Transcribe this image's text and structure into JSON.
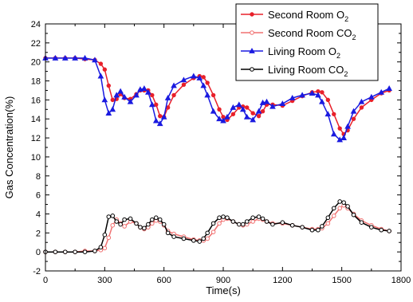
{
  "chart_data": {
    "type": "line",
    "xlabel": "Time(s)",
    "ylabel": "Gas Concentration(%)",
    "xlim": [
      0,
      1800
    ],
    "ylim": [
      -2,
      24
    ],
    "xticks": [
      "0",
      "300",
      "600",
      "900",
      "1200",
      "1500",
      "1800"
    ],
    "yticks": [
      "-2",
      "0",
      "2",
      "4",
      "6",
      "8",
      "10",
      "12",
      "14",
      "16",
      "18",
      "20",
      "22",
      "24"
    ],
    "legend_position": "top-right",
    "x": [
      0,
      50,
      100,
      150,
      200,
      250,
      280,
      300,
      320,
      340,
      360,
      380,
      400,
      430,
      460,
      480,
      500,
      520,
      540,
      560,
      580,
      600,
      620,
      650,
      700,
      750,
      780,
      800,
      820,
      850,
      880,
      900,
      920,
      950,
      980,
      1000,
      1020,
      1050,
      1080,
      1100,
      1120,
      1150,
      1200,
      1250,
      1300,
      1350,
      1380,
      1400,
      1430,
      1460,
      1490,
      1510,
      1530,
      1560,
      1600,
      1650,
      1700,
      1740
    ],
    "series": [
      {
        "name": "Second Room O2",
        "label_main": "Second Room O",
        "label_sub": "2",
        "color": "#e8202a",
        "marker": "filled-circle",
        "values": [
          20.4,
          20.4,
          20.4,
          20.4,
          20.3,
          20.2,
          19.8,
          19.2,
          17.5,
          16.0,
          16.1,
          16.6,
          16.2,
          16.1,
          16.6,
          17.0,
          17.0,
          17.0,
          16.5,
          15.5,
          14.3,
          14.2,
          15.2,
          16.5,
          17.6,
          18.3,
          18.5,
          18.4,
          17.8,
          16.5,
          15.0,
          14.2,
          13.9,
          14.5,
          15.2,
          15.3,
          15.2,
          14.6,
          14.3,
          14.8,
          15.5,
          15.5,
          15.4,
          15.9,
          16.4,
          16.8,
          16.9,
          16.8,
          16.0,
          14.5,
          13.0,
          12.4,
          12.8,
          14.0,
          15.2,
          16.0,
          16.7,
          17.0
        ]
      },
      {
        "name": "Second Room CO2",
        "label_main": "Second Room CO",
        "label_sub": "2",
        "color": "#f07070",
        "marker": "open-circle",
        "values": [
          0.0,
          0.0,
          0.0,
          0.0,
          0.1,
          0.1,
          0.2,
          0.4,
          1.5,
          2.8,
          3.4,
          3.0,
          2.7,
          3.2,
          3.0,
          2.6,
          2.4,
          2.6,
          3.0,
          3.3,
          3.2,
          2.8,
          2.2,
          1.9,
          1.6,
          1.3,
          1.2,
          1.2,
          1.4,
          2.1,
          3.0,
          3.4,
          3.5,
          3.2,
          2.9,
          2.8,
          2.9,
          3.2,
          3.5,
          3.4,
          3.2,
          3.0,
          3.0,
          2.8,
          2.6,
          2.4,
          2.4,
          2.5,
          3.0,
          3.8,
          4.6,
          4.9,
          4.6,
          4.0,
          3.3,
          2.8,
          2.4,
          2.2
        ]
      },
      {
        "name": "Living Room O2",
        "label_main": "Living Room O",
        "label_sub": "2",
        "color": "#1a1ae0",
        "marker": "filled-triangle",
        "values": [
          20.4,
          20.4,
          20.4,
          20.4,
          20.4,
          20.2,
          18.5,
          16.0,
          14.6,
          15.0,
          16.5,
          16.9,
          16.3,
          15.8,
          16.5,
          17.1,
          17.2,
          16.8,
          15.5,
          13.8,
          13.5,
          14.2,
          16.2,
          17.5,
          18.1,
          18.5,
          18.3,
          17.5,
          16.5,
          14.8,
          14.0,
          13.8,
          14.2,
          15.2,
          15.5,
          15.0,
          14.2,
          13.9,
          14.8,
          15.7,
          15.8,
          15.3,
          15.6,
          16.2,
          16.5,
          16.7,
          16.5,
          15.8,
          14.5,
          12.4,
          11.8,
          12.0,
          13.2,
          14.8,
          15.8,
          16.3,
          16.8,
          17.2
        ]
      },
      {
        "name": "Living Room CO2",
        "label_main": "Living Room CO",
        "label_sub": "2",
        "color": "#000000",
        "marker": "open-circle",
        "values": [
          0.0,
          0.0,
          0.0,
          0.0,
          0.0,
          0.1,
          0.5,
          1.8,
          3.7,
          3.8,
          3.2,
          2.9,
          3.4,
          3.5,
          3.0,
          2.6,
          2.5,
          2.9,
          3.4,
          3.6,
          3.4,
          2.9,
          2.0,
          1.6,
          1.4,
          1.2,
          1.1,
          1.4,
          2.0,
          3.0,
          3.6,
          3.7,
          3.6,
          3.2,
          2.9,
          2.9,
          3.2,
          3.6,
          3.7,
          3.5,
          3.2,
          2.9,
          3.1,
          2.8,
          2.6,
          2.3,
          2.3,
          2.7,
          3.6,
          4.6,
          5.3,
          5.2,
          4.8,
          3.9,
          3.1,
          2.6,
          2.3,
          2.2
        ]
      }
    ]
  }
}
